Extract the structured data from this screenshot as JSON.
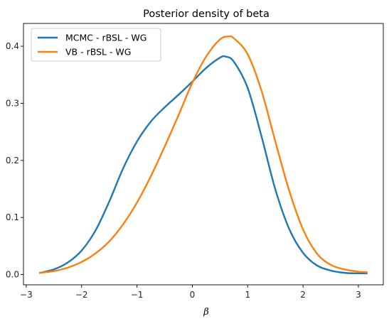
{
  "chart_data": {
    "type": "line",
    "title": "Posterior density of beta",
    "xlabel": "β",
    "ylabel": "",
    "xlim": [
      -3.05,
      3.45
    ],
    "ylim": [
      -0.018,
      0.44
    ],
    "xticks": [
      -3,
      -2,
      -1,
      0,
      1,
      2,
      3
    ],
    "xtick_labels": [
      "−3",
      "−2",
      "−1",
      "0",
      "1",
      "2",
      "3"
    ],
    "yticks": [
      0.0,
      0.1,
      0.2,
      0.3,
      0.4
    ],
    "ytick_labels": [
      "0.0",
      "0.1",
      "0.2",
      "0.3",
      "0.4"
    ],
    "grid": false,
    "legend_position": "top-left",
    "series": [
      {
        "name": "MCMC - rBSL - WG",
        "color": "#1f77b4",
        "x": [
          -2.75,
          -2.5,
          -2.25,
          -2.0,
          -1.75,
          -1.5,
          -1.25,
          -1.0,
          -0.75,
          -0.5,
          -0.25,
          0.0,
          0.25,
          0.5,
          0.6,
          0.75,
          1.0,
          1.25,
          1.5,
          1.75,
          2.0,
          2.25,
          2.5,
          2.75,
          3.0,
          3.15
        ],
        "y": [
          0.003,
          0.009,
          0.021,
          0.042,
          0.077,
          0.128,
          0.186,
          0.233,
          0.268,
          0.293,
          0.315,
          0.338,
          0.362,
          0.38,
          0.382,
          0.373,
          0.327,
          0.242,
          0.149,
          0.08,
          0.038,
          0.016,
          0.007,
          0.003,
          0.002,
          0.002
        ]
      },
      {
        "name": "VB - rBSL - WG",
        "color": "#ff7f0e",
        "x": [
          -2.75,
          -2.5,
          -2.25,
          -2.0,
          -1.75,
          -1.5,
          -1.25,
          -1.0,
          -0.75,
          -0.5,
          -0.25,
          0.0,
          0.25,
          0.5,
          0.65,
          0.75,
          1.0,
          1.25,
          1.5,
          1.75,
          2.0,
          2.25,
          2.5,
          2.75,
          3.0,
          3.15
        ],
        "y": [
          0.003,
          0.006,
          0.012,
          0.022,
          0.037,
          0.058,
          0.088,
          0.126,
          0.172,
          0.224,
          0.279,
          0.336,
          0.382,
          0.412,
          0.417,
          0.414,
          0.386,
          0.322,
          0.233,
          0.147,
          0.079,
          0.037,
          0.017,
          0.009,
          0.005,
          0.004
        ]
      }
    ]
  }
}
